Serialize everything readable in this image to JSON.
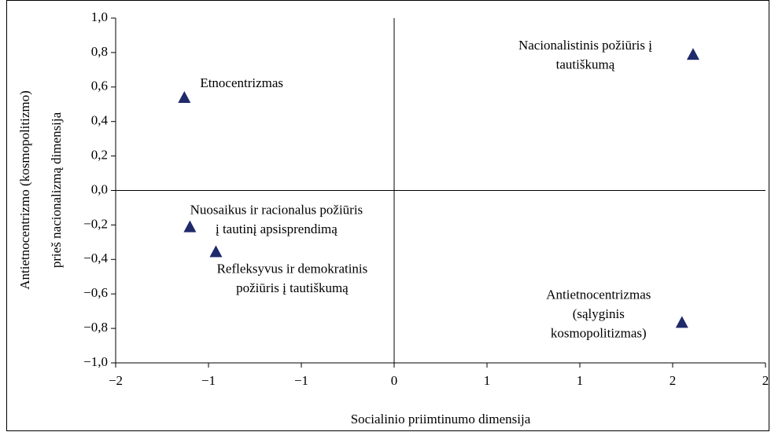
{
  "chart_data": {
    "type": "scatter",
    "xlabel": "Socialinio priimtinumo dimensija",
    "ylabel": [
      "Antietnocentrizmo (kosmopolitizmo)",
      "prieš nacionalizmą dimensija"
    ],
    "xlim": [
      -1.5,
      2
    ],
    "ylim": [
      -1,
      1
    ],
    "xticks": [
      {
        "value": -1.5,
        "label": "−2"
      },
      {
        "value": -1,
        "label": "−1"
      },
      {
        "value": -0.5,
        "label": "−1"
      },
      {
        "value": 0,
        "label": "0"
      },
      {
        "value": 0.5,
        "label": "1"
      },
      {
        "value": 1,
        "label": "1"
      },
      {
        "value": 1.5,
        "label": "2"
      },
      {
        "value": 2,
        "label": "2"
      }
    ],
    "yticks": [
      {
        "value": 1,
        "label": "1,0"
      },
      {
        "value": 0.8,
        "label": "0,8"
      },
      {
        "value": 0.6,
        "label": "0,6"
      },
      {
        "value": 0.4,
        "label": "0,4"
      },
      {
        "value": 0.2,
        "label": "0,2"
      },
      {
        "value": 0,
        "label": "0,0"
      },
      {
        "value": -0.2,
        "label": "−0,2"
      },
      {
        "value": -0.4,
        "label": "−0,4"
      },
      {
        "value": -0.6,
        "label": "−0,6"
      },
      {
        "value": -0.8,
        "label": "−0,8"
      },
      {
        "value": -1,
        "label": "−1,0"
      }
    ],
    "color": "#1f2a6b",
    "x": [
      -1.13,
      1.61,
      -1.1,
      -0.96,
      1.55
    ],
    "values": [
      0.54,
      0.79,
      -0.21,
      -0.355,
      -0.765
    ],
    "point_labels": [
      [
        "Etnocentrizmas"
      ],
      [
        "Nacionalistinis požiūris į",
        "tautiškumą"
      ],
      [
        "Nuosaikus ir racionalus požiūris",
        "į tautinį apsisprendimą"
      ],
      [
        "Refleksyvus ir demokratinis",
        "požiūris į tautiškumą"
      ],
      [
        "Antietnocentrizmas",
        "(sąlyginis",
        "kosmopolitizmas)"
      ]
    ]
  }
}
